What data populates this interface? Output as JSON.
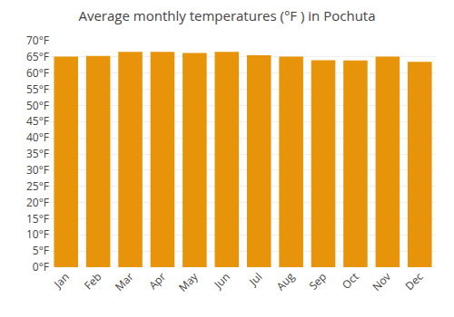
{
  "chart_data": {
    "type": "bar",
    "title": "Average monthly temperatures (°F ) in Pochuta",
    "categories": [
      "Jan",
      "Feb",
      "Mar",
      "Apr",
      "May",
      "Jun",
      "Jul",
      "Aug",
      "Sep",
      "Oct",
      "Nov",
      "Dec"
    ],
    "values": [
      65.1,
      65.3,
      66.6,
      66.6,
      66.2,
      66.6,
      65.5,
      65.1,
      64.0,
      63.9,
      65.1,
      63.5
    ],
    "color": "#E8940A",
    "ylim": [
      0,
      70
    ],
    "yticks": [
      {
        "value": 0,
        "label": "0°F"
      },
      {
        "value": 5,
        "label": "5°F"
      },
      {
        "value": 10,
        "label": "10°F"
      },
      {
        "value": 15,
        "label": "15°F"
      },
      {
        "value": 20,
        "label": "20°F"
      },
      {
        "value": 25,
        "label": "25°F"
      },
      {
        "value": 30,
        "label": "30°F"
      },
      {
        "value": 35,
        "label": "35°F"
      },
      {
        "value": 40,
        "label": "40°F"
      },
      {
        "value": 45,
        "label": "45°F"
      },
      {
        "value": 50,
        "label": "50°F"
      },
      {
        "value": 55,
        "label": "55°F"
      },
      {
        "value": 60,
        "label": "60°F"
      },
      {
        "value": 65,
        "label": "65°F"
      },
      {
        "value": 70,
        "label": "70°F"
      }
    ],
    "grid": true
  }
}
